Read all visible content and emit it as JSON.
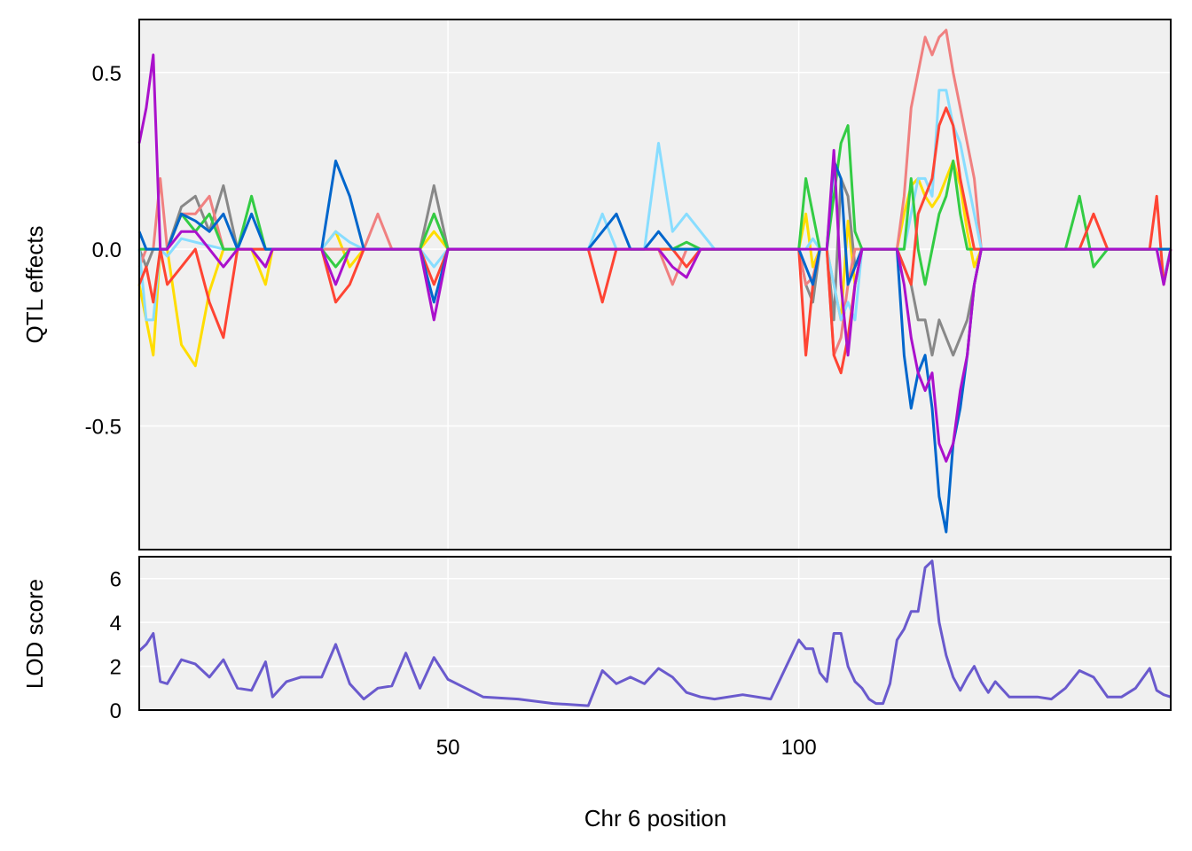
{
  "chart_data": [
    {
      "type": "line",
      "panel": "effects",
      "ylabel": "QTL effects",
      "xlabel": "",
      "xlim": [
        6,
        153
      ],
      "ylim": [
        -0.85,
        0.65
      ],
      "grid": true,
      "legend": "none",
      "x_ticks": [
        50,
        100
      ],
      "y_ticks": [
        {
          "value": 0.5,
          "label": "0.5"
        },
        {
          "value": 0.0,
          "label": "0.0"
        },
        {
          "value": -0.5,
          "label": "-0.5"
        }
      ],
      "x": [
        6,
        7,
        8,
        9,
        10,
        12,
        14,
        16,
        18,
        20,
        22,
        24,
        25,
        27,
        29,
        32,
        34,
        36,
        38,
        40,
        42,
        44,
        46,
        48,
        50,
        55,
        60,
        65,
        70,
        72,
        74,
        76,
        78,
        80,
        82,
        84,
        86,
        88,
        92,
        96,
        100,
        101,
        102,
        103,
        104,
        105,
        106,
        107,
        108,
        109,
        110,
        111,
        112,
        113,
        114,
        115,
        116,
        117,
        118,
        119,
        120,
        121,
        122,
        123,
        124,
        125,
        126,
        127,
        128,
        130,
        132,
        134,
        136,
        138,
        140,
        142,
        144,
        146,
        148,
        150,
        151,
        152,
        153
      ],
      "series": [
        {
          "color": "#FFDD00",
          "values": [
            -0.1,
            -0.2,
            -0.3,
            0,
            0,
            -0.27,
            -0.33,
            -0.12,
            0,
            0,
            0,
            -0.1,
            0,
            0,
            0,
            0,
            0.05,
            -0.05,
            0,
            0,
            0,
            0,
            0,
            0.05,
            0,
            0,
            0,
            0,
            0,
            0,
            0,
            0,
            0,
            0,
            0,
            0,
            0,
            0,
            0,
            0,
            0,
            0.1,
            -0.05,
            0,
            0,
            -0.1,
            -0.2,
            0.08,
            -0.1,
            0,
            0,
            0,
            0,
            0,
            0,
            0.1,
            0.18,
            0.2,
            0.15,
            0.12,
            0.15,
            0.2,
            0.25,
            0.18,
            0.05,
            -0.05,
            0,
            0,
            0,
            0,
            0,
            0,
            0,
            0,
            0,
            0,
            0,
            0,
            0,
            0,
            0,
            0,
            0
          ]
        },
        {
          "color": "#888888",
          "values": [
            0,
            -0.05,
            0,
            0,
            0,
            0.12,
            0.15,
            0.05,
            0.18,
            0,
            0,
            0,
            0,
            0,
            0,
            0,
            0,
            0,
            0,
            0,
            0,
            0,
            0,
            0.18,
            0,
            0,
            0,
            0,
            0,
            0,
            0,
            0,
            0,
            0,
            0,
            0,
            0,
            0,
            0,
            0,
            0,
            -0.1,
            -0.15,
            0,
            0,
            -0.2,
            0.2,
            0.15,
            -0.05,
            0,
            0,
            0,
            0,
            0,
            0,
            -0.05,
            -0.1,
            -0.2,
            -0.2,
            -0.3,
            -0.2,
            -0.25,
            -0.3,
            -0.25,
            -0.2,
            -0.1,
            0,
            0,
            0,
            0,
            0,
            0,
            0,
            0,
            0,
            0,
            0,
            0,
            0,
            0,
            0,
            0,
            0
          ]
        },
        {
          "color": "#F08080",
          "values": [
            -0.05,
            0,
            0,
            0.2,
            0,
            0.1,
            0.1,
            0.15,
            0,
            0,
            0,
            0,
            0,
            0,
            0,
            0,
            0,
            0,
            0,
            0.1,
            0,
            0,
            0,
            0.1,
            0,
            0,
            0,
            0,
            0,
            0,
            0,
            0,
            0,
            0,
            -0.1,
            0,
            0,
            0,
            0,
            0,
            0,
            -0.1,
            -0.08,
            0,
            0,
            -0.3,
            -0.25,
            -0.1,
            0,
            0,
            0,
            0,
            0,
            0,
            0,
            0.15,
            0.4,
            0.5,
            0.6,
            0.55,
            0.6,
            0.62,
            0.5,
            0.4,
            0.3,
            0.2,
            0,
            0,
            0,
            0,
            0,
            0,
            0,
            0,
            0,
            0,
            0,
            0,
            0,
            0,
            0,
            0,
            0
          ]
        },
        {
          "color": "#88DDFF",
          "values": [
            0,
            -0.2,
            -0.2,
            0,
            -0.02,
            0.03,
            0.02,
            0.01,
            0,
            0,
            0,
            0,
            0,
            0,
            0,
            0,
            0.05,
            0.02,
            0,
            0,
            0,
            0,
            0,
            -0.05,
            0,
            0,
            0,
            0,
            0,
            0.1,
            0,
            0,
            0,
            0.3,
            0.05,
            0.1,
            0.05,
            0,
            0,
            0,
            0,
            0,
            0.03,
            0,
            0,
            -0.1,
            -0.2,
            -0.15,
            -0.2,
            0,
            0,
            0,
            0,
            0,
            0,
            0,
            0.1,
            0.2,
            0.2,
            0.15,
            0.45,
            0.45,
            0.35,
            0.3,
            0.2,
            0.1,
            0,
            0,
            0,
            0,
            0,
            0,
            0,
            0,
            0,
            0,
            0,
            0,
            0,
            0,
            0,
            -0.08,
            0
          ]
        },
        {
          "color": "#33CC44",
          "values": [
            0,
            0,
            0,
            0,
            0,
            0.1,
            0.05,
            0.1,
            0,
            0,
            0.15,
            0,
            0,
            0,
            0,
            0,
            -0.05,
            0,
            0,
            0,
            0,
            0,
            0,
            0.1,
            0,
            0,
            0,
            0,
            0,
            0,
            0,
            0,
            0,
            0,
            0,
            0.02,
            0,
            0,
            0,
            0,
            0,
            0.2,
            0.1,
            0,
            0,
            0.15,
            0.3,
            0.35,
            0.05,
            0,
            0,
            0,
            0,
            0,
            0,
            0,
            0.2,
            0,
            -0.1,
            0,
            0.1,
            0.15,
            0.25,
            0.1,
            0,
            0,
            0,
            0,
            0,
            0,
            0,
            0,
            0,
            0,
            0.15,
            -0.05,
            0,
            0,
            0,
            0,
            0,
            0,
            0
          ]
        },
        {
          "color": "#FF4433",
          "values": [
            -0.1,
            -0.05,
            -0.15,
            0,
            -0.1,
            -0.05,
            0,
            -0.15,
            -0.25,
            0,
            0,
            0,
            0,
            0,
            0,
            0,
            -0.15,
            -0.1,
            0,
            0,
            0,
            0,
            0,
            -0.1,
            0,
            0,
            0,
            0,
            0,
            -0.15,
            0,
            0,
            0,
            0,
            0,
            -0.05,
            0,
            0,
            0,
            0,
            0,
            -0.3,
            -0.1,
            0,
            0,
            -0.3,
            -0.35,
            -0.25,
            -0.1,
            0,
            0,
            0,
            0,
            0,
            0,
            -0.05,
            -0.1,
            0.1,
            0.15,
            0.2,
            0.35,
            0.4,
            0.35,
            0.2,
            0.1,
            0,
            0,
            0,
            0,
            0,
            0,
            0,
            0,
            0,
            0,
            0.1,
            0,
            0,
            0,
            0,
            0.15,
            -0.1,
            0
          ]
        },
        {
          "color": "#0066CC",
          "values": [
            0.05,
            0,
            0,
            0,
            0,
            0.1,
            0.08,
            0.05,
            0.1,
            0,
            0.1,
            0,
            0,
            0,
            0,
            0,
            0.25,
            0.15,
            0,
            0,
            0,
            0,
            0,
            -0.15,
            0,
            0,
            0,
            0,
            0,
            0.05,
            0.1,
            0,
            0,
            0.05,
            0,
            0,
            0,
            0,
            0,
            0,
            0,
            -0.05,
            -0.1,
            0,
            0,
            0.25,
            0.2,
            -0.1,
            -0.05,
            0,
            0,
            0,
            0,
            0,
            0,
            -0.3,
            -0.45,
            -0.35,
            -0.3,
            -0.45,
            -0.7,
            -0.8,
            -0.55,
            -0.45,
            -0.3,
            -0.1,
            0,
            0,
            0,
            0,
            0,
            0,
            0,
            0,
            0,
            0,
            0,
            0,
            0,
            0,
            0,
            0,
            0
          ]
        },
        {
          "color": "#AA11CC",
          "values": [
            0.3,
            0.4,
            0.55,
            0,
            0,
            0.05,
            0.05,
            0,
            -0.05,
            0,
            0,
            -0.05,
            0,
            0,
            0,
            0,
            -0.1,
            0,
            0,
            0,
            0,
            0,
            0,
            -0.2,
            0,
            0,
            0,
            0,
            0,
            0,
            0,
            0,
            0,
            0,
            -0.05,
            -0.08,
            0,
            0,
            0,
            0,
            0,
            0,
            0,
            0,
            0,
            0.28,
            -0.1,
            -0.3,
            -0.1,
            0,
            0,
            0,
            0,
            0,
            0,
            -0.1,
            -0.25,
            -0.35,
            -0.4,
            -0.35,
            -0.55,
            -0.6,
            -0.55,
            -0.4,
            -0.3,
            -0.1,
            0,
            0,
            0,
            0,
            0,
            0,
            0,
            0,
            0,
            0,
            0,
            0,
            0,
            0,
            0,
            -0.1,
            0
          ]
        }
      ]
    },
    {
      "type": "line",
      "panel": "lod",
      "ylabel": "LOD score",
      "xlabel": "Chr 6 position",
      "xlim": [
        6,
        153
      ],
      "ylim": [
        0,
        7
      ],
      "grid": true,
      "legend": "none",
      "x_ticks": [
        {
          "value": 50,
          "label": "50"
        },
        {
          "value": 100,
          "label": "100"
        }
      ],
      "y_ticks": [
        {
          "value": 0,
          "label": "0"
        },
        {
          "value": 2,
          "label": "2"
        },
        {
          "value": 4,
          "label": "4"
        },
        {
          "value": 6,
          "label": "6"
        }
      ],
      "x": [
        6,
        7,
        8,
        9,
        10,
        12,
        14,
        16,
        18,
        20,
        22,
        24,
        25,
        27,
        29,
        32,
        34,
        36,
        38,
        40,
        42,
        44,
        46,
        48,
        50,
        55,
        60,
        65,
        70,
        72,
        74,
        76,
        78,
        80,
        82,
        84,
        86,
        88,
        92,
        96,
        100,
        101,
        102,
        103,
        104,
        105,
        106,
        107,
        108,
        109,
        110,
        111,
        112,
        113,
        114,
        115,
        116,
        117,
        118,
        119,
        120,
        121,
        122,
        123,
        124,
        125,
        126,
        127,
        128,
        130,
        132,
        134,
        136,
        138,
        140,
        142,
        144,
        146,
        148,
        150,
        151,
        152,
        153
      ],
      "series": [
        {
          "color": "#6A5ACD",
          "values": [
            2.7,
            3.0,
            3.5,
            1.3,
            1.2,
            2.3,
            2.1,
            1.5,
            2.3,
            1.0,
            0.9,
            2.2,
            0.6,
            1.3,
            1.5,
            1.5,
            3.0,
            1.2,
            0.5,
            1.0,
            1.1,
            2.6,
            1.0,
            2.4,
            1.4,
            0.6,
            0.5,
            0.3,
            0.2,
            1.8,
            1.2,
            1.5,
            1.2,
            1.9,
            1.5,
            0.8,
            0.6,
            0.5,
            0.7,
            0.5,
            3.2,
            2.8,
            2.8,
            1.7,
            1.3,
            3.5,
            3.5,
            2.0,
            1.3,
            1.0,
            0.5,
            0.3,
            0.3,
            1.2,
            3.2,
            3.7,
            4.5,
            4.5,
            6.5,
            6.8,
            4.0,
            2.5,
            1.5,
            0.9,
            1.5,
            2.0,
            1.3,
            0.8,
            1.3,
            0.6,
            0.6,
            0.6,
            0.5,
            1.0,
            1.8,
            1.5,
            0.6,
            0.6,
            1.0,
            1.9,
            0.9,
            0.7,
            0.6
          ]
        }
      ]
    }
  ]
}
